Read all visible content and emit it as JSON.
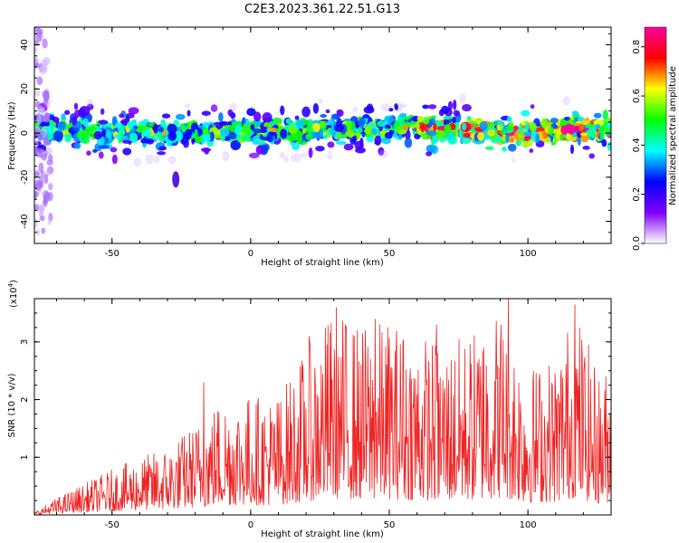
{
  "title": "C2E3.2023.361.22.51.G13",
  "chart_data": [
    {
      "type": "heatmap",
      "title": "C2E3.2023.361.22.51.G13",
      "xlabel": "Height of straight line (km)",
      "ylabel": "Frequency (Hz)",
      "xlim": [
        -78,
        130
      ],
      "ylim": [
        -50,
        48
      ],
      "xticks": [
        -50,
        0,
        50,
        100
      ],
      "yticks": [
        -40,
        -20,
        0,
        20,
        40
      ],
      "xtick_labels": [
        "-50",
        "0",
        "50",
        "100"
      ],
      "ytick_labels": [
        "-40",
        "-20",
        "0",
        "20",
        "40"
      ],
      "colorbar": {
        "label": "Normalized spectral amplitude",
        "range": [
          0,
          0.88
        ],
        "ticks": [
          0.0,
          0.2,
          0.4,
          0.6,
          0.8
        ],
        "tick_labels": [
          "0.0",
          "0.2",
          "0.4",
          "0.6",
          "0.8"
        ],
        "colors": [
          "#ffffff",
          "#8000ff",
          "#0000ff",
          "#00ffff",
          "#00ff00",
          "#ffff00",
          "#ff0000",
          "#ff00a0"
        ]
      },
      "band": {
        "center_frequency_hz": [
          [
            -75,
            2
          ],
          [
            -60,
            1
          ],
          [
            -40,
            0
          ],
          [
            -20,
            0
          ],
          [
            0,
            1
          ],
          [
            20,
            1
          ],
          [
            40,
            2
          ],
          [
            60,
            3
          ],
          [
            70,
            1
          ],
          [
            80,
            1
          ],
          [
            90,
            1
          ],
          [
            100,
            0
          ],
          [
            110,
            2
          ],
          [
            120,
            2
          ],
          [
            130,
            2
          ]
        ],
        "half_width_hz": 5,
        "secondary_blob": {
          "x_km": -27,
          "freq_hz": -21
        }
      },
      "grid": false
    },
    {
      "type": "line",
      "xlabel": "Height of straight line (km)",
      "ylabel": "SNR (10 * v/v)",
      "y_scale_label": "(x10",
      "y_scale_exponent": "4",
      "xlim": [
        -78,
        130
      ],
      "ylim": [
        0,
        3.75
      ],
      "xticks": [
        -50,
        0,
        50,
        100
      ],
      "yticks": [
        1,
        2,
        3
      ],
      "xtick_labels": [
        "-50",
        "0",
        "50",
        "100"
      ],
      "ytick_labels": [
        "1",
        "2",
        "3"
      ],
      "series": [
        {
          "color": "#ee2222",
          "envelope_peak": [
            [
              -78,
              0.05
            ],
            [
              -70,
              0.3
            ],
            [
              -60,
              0.55
            ],
            [
              -50,
              0.8
            ],
            [
              -40,
              1.0
            ],
            [
              -30,
              1.2
            ],
            [
              -20,
              1.6
            ],
            [
              -10,
              2.1
            ],
            [
              0,
              2.1
            ],
            [
              10,
              2.1
            ],
            [
              20,
              2.9
            ],
            [
              30,
              3.6
            ],
            [
              40,
              3.3
            ],
            [
              50,
              3.4
            ],
            [
              60,
              3.2
            ],
            [
              70,
              3.0
            ],
            [
              80,
              3.2
            ],
            [
              90,
              3.7
            ],
            [
              100,
              2.6
            ],
            [
              110,
              2.8
            ],
            [
              117,
              3.7
            ],
            [
              125,
              2.5
            ],
            [
              130,
              2.6
            ]
          ],
          "highlighted_peaks": [
            [
              -17,
              2.3
            ],
            [
              21,
              3.1
            ],
            [
              31,
              3.6
            ],
            [
              45,
              3.4
            ],
            [
              55,
              3.0
            ],
            [
              67,
              3.3
            ],
            [
              84,
              2.9
            ],
            [
              93,
              3.75
            ],
            [
              117,
              3.65
            ]
          ]
        }
      ],
      "grid": false
    }
  ]
}
